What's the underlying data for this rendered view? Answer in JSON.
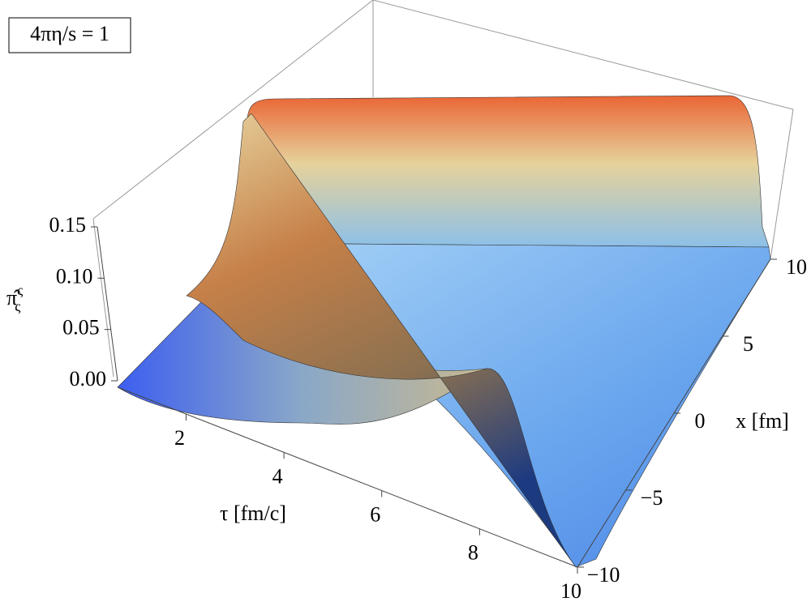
{
  "chart_data": {
    "type": "surface3d",
    "annotation": "4πη/s = 1",
    "xlabel": "τ [fm/c]",
    "ylabel": "x [fm]",
    "zlabel": {
      "base": "π̂",
      "sup": "ς",
      "sub": "ς"
    },
    "xlim": [
      0.6,
      10
    ],
    "xticks": [
      2,
      4,
      6,
      8,
      10
    ],
    "ylim": [
      -10,
      10
    ],
    "yticks": [
      {
        "value": -10,
        "label": "−10"
      },
      {
        "value": -5,
        "label": "−5"
      },
      0,
      5,
      10
    ],
    "zlim": [
      0,
      0.15
    ],
    "zticks": [
      {
        "value": 0,
        "label": "0.00"
      },
      {
        "value": 0.05,
        "label": "0.05"
      },
      {
        "value": 0.1,
        "label": "0.10"
      },
      {
        "value": 0.15,
        "label": "0.15"
      }
    ]
  }
}
